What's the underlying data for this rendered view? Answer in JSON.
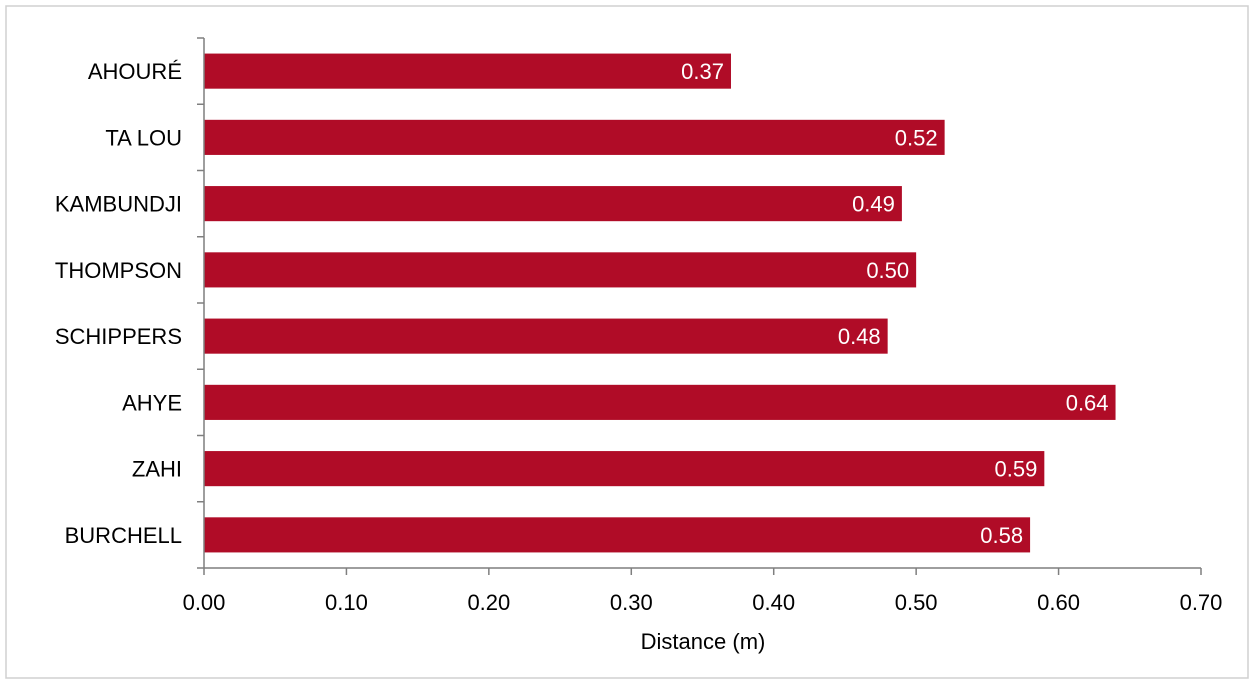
{
  "chart_data": {
    "type": "bar",
    "orientation": "horizontal",
    "categories": [
      "AHOURÉ",
      "TA LOU",
      "KAMBUNDJI",
      "THOMPSON",
      "SCHIPPERS",
      "AHYE",
      "ZAHI",
      "BURCHELL"
    ],
    "values": [
      0.37,
      0.52,
      0.49,
      0.5,
      0.48,
      0.64,
      0.59,
      0.58
    ],
    "value_labels": [
      "0.37",
      "0.52",
      "0.49",
      "0.50",
      "0.48",
      "0.64",
      "0.59",
      "0.58"
    ],
    "xlabel": "Distance (m)",
    "ylabel": "",
    "title": "",
    "xlim": [
      0,
      0.7
    ],
    "x_ticks": [
      "0.00",
      "0.10",
      "0.20",
      "0.30",
      "0.40",
      "0.50",
      "0.60",
      "0.70"
    ],
    "grid": false,
    "legend": "none",
    "bar_color": "#b00c27",
    "data_label_color": "#ffffff",
    "axis_color": "#7f7f7f",
    "frame_color": "#d0d0d0",
    "text_color": "#000000"
  }
}
